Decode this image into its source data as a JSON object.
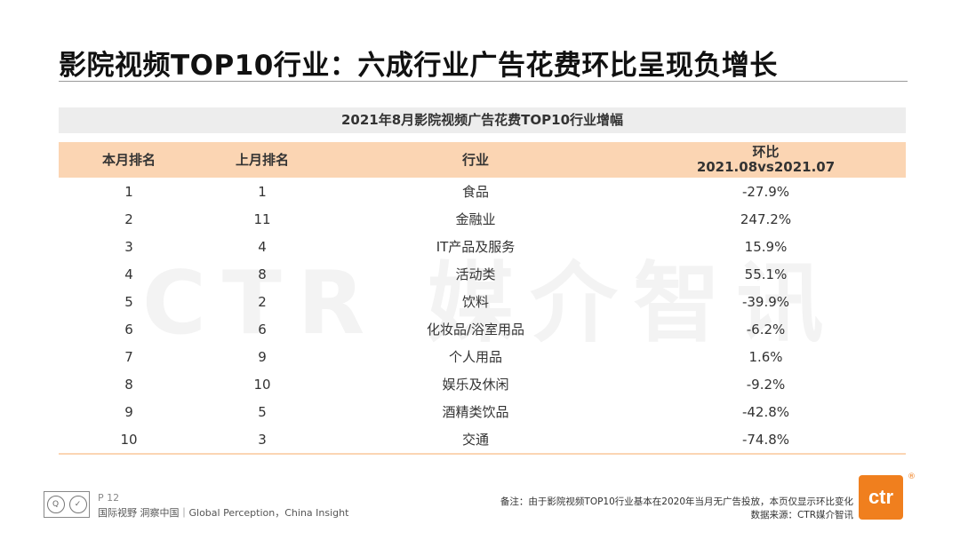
{
  "title": "影院视频TOP10行业：六成行业广告花费环比呈现负增长",
  "watermark": "CTR 媒介智讯",
  "table": {
    "caption": "2021年8月影院视频广告花费TOP10行业增幅",
    "headers": {
      "rank_this": "本月排名",
      "rank_last": "上月排名",
      "industry": "行业",
      "mom_line1": "环比",
      "mom_line2": "2021.08vs2021.07"
    },
    "rows": [
      {
        "rank": "1",
        "last": "1",
        "industry": "食品",
        "mom": "-27.9%"
      },
      {
        "rank": "2",
        "last": "11",
        "industry": "金融业",
        "mom": "247.2%"
      },
      {
        "rank": "3",
        "last": "4",
        "industry": "IT产品及服务",
        "mom": "15.9%"
      },
      {
        "rank": "4",
        "last": "8",
        "industry": "活动类",
        "mom": "55.1%"
      },
      {
        "rank": "5",
        "last": "2",
        "industry": "饮料",
        "mom": "-39.9%"
      },
      {
        "rank": "6",
        "last": "6",
        "industry": "化妆品/浴室用品",
        "mom": "-6.2%"
      },
      {
        "rank": "7",
        "last": "9",
        "industry": "个人用品",
        "mom": "1.6%"
      },
      {
        "rank": "8",
        "last": "10",
        "industry": "娱乐及休闲",
        "mom": "-9.2%"
      },
      {
        "rank": "9",
        "last": "5",
        "industry": "酒精类饮品",
        "mom": "-42.8%"
      },
      {
        "rank": "10",
        "last": "3",
        "industry": "交通",
        "mom": "-74.8%"
      }
    ]
  },
  "footer": {
    "page": "P 12",
    "slogan": "国际视野  洞察中国｜Global Perception，China Insight",
    "note": "备注：由于影院视频TOP10行业基本在2020年当月无广告投放，本页仅显示环比变化",
    "source": "数据来源：CTR媒介智讯",
    "brand": "ctr",
    "reg": "®"
  },
  "colors": {
    "header_bg": "#fbd5b3",
    "caption_bg": "#ededed",
    "brand_orange": "#f07f1e"
  }
}
